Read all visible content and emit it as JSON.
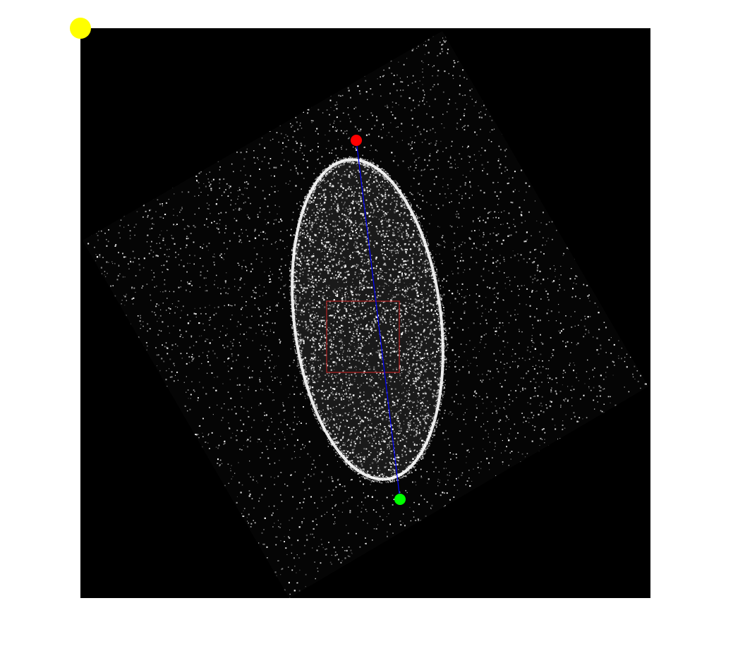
{
  "figure": {
    "background_color": "#ffffff"
  },
  "image": {
    "background_color": "#000000",
    "noise_color": "#ffffff",
    "has_axes": false
  },
  "markers": {
    "corner_marker_color": "#ffff00",
    "start_marker_color": "#ff0000",
    "end_marker_color": "#00ff00"
  },
  "overlays": {
    "major_axis_line_color": "#0000ff",
    "roi_box_color": "#b22222",
    "ellipse_outline_color": "#ffffff"
  }
}
